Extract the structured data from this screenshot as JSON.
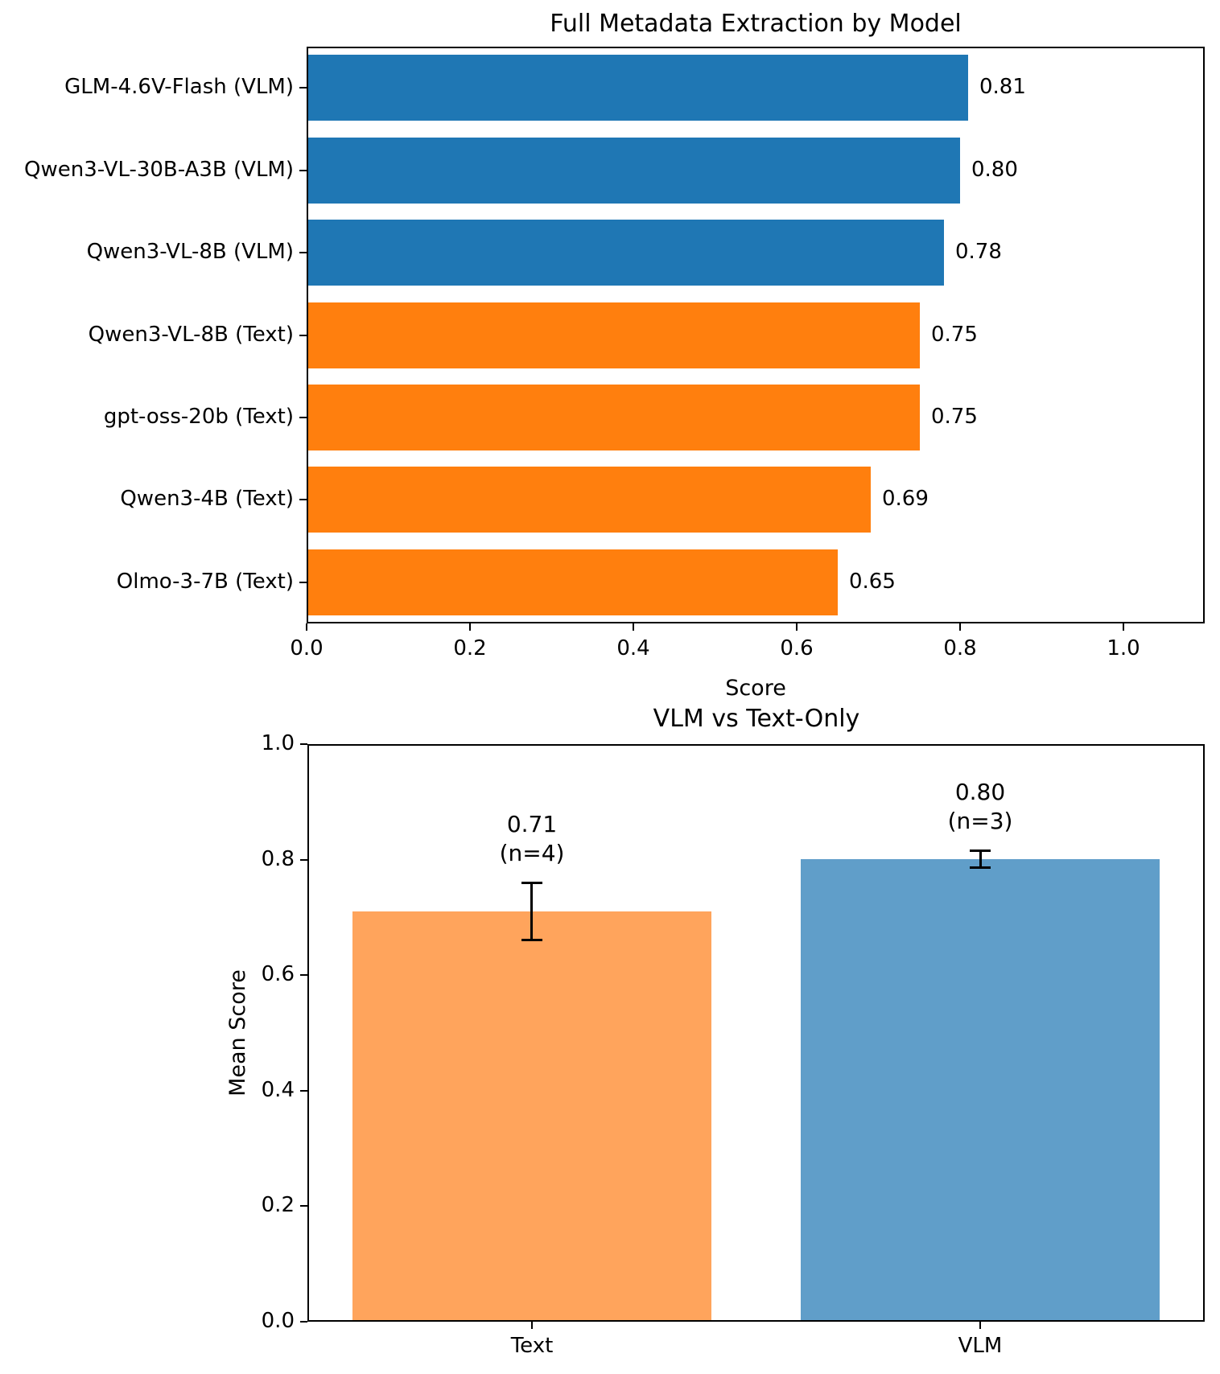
{
  "figure": {
    "background": "#ffffff",
    "text_color": "#000000"
  },
  "chart_data": [
    {
      "type": "bar",
      "orientation": "horizontal",
      "title": "Full Metadata Extraction by Model",
      "xlabel": "Score",
      "ylabel": "",
      "categories": [
        "GLM-4.6V-Flash (VLM)",
        "Qwen3-VL-30B-A3B (VLM)",
        "Qwen3-VL-8B (VLM)",
        "Qwen3-VL-8B (Text)",
        "gpt-oss-20b (Text)",
        "Qwen3-4B (Text)",
        "Olmo-3-7B (Text)"
      ],
      "values": [
        0.81,
        0.8,
        0.78,
        0.75,
        0.75,
        0.69,
        0.65
      ],
      "value_labels": [
        "0.81",
        "0.80",
        "0.78",
        "0.75",
        "0.75",
        "0.69",
        "0.65"
      ],
      "bar_colors": [
        "#1f77b4",
        "#1f77b4",
        "#1f77b4",
        "#ff7f0e",
        "#ff7f0e",
        "#ff7f0e",
        "#ff7f0e"
      ],
      "color_legend": {
        "vlm": "#1f77b4",
        "text": "#ff7f0e"
      },
      "xlim": [
        0.0,
        1.1
      ],
      "xticks": {
        "values": [
          0.0,
          0.2,
          0.4,
          0.6,
          0.8,
          1.0
        ],
        "labels": [
          "0.0",
          "0.2",
          "0.4",
          "0.6",
          "0.8",
          "1.0"
        ]
      },
      "grid": false
    },
    {
      "type": "bar",
      "orientation": "vertical",
      "title": "VLM vs Text-Only",
      "xlabel": "",
      "ylabel": "Mean Score",
      "categories": [
        "Text",
        "VLM"
      ],
      "values": [
        0.71,
        0.8
      ],
      "errors": [
        0.05,
        0.015
      ],
      "annotations": [
        {
          "line1": "0.71",
          "line2": "(n=4)"
        },
        {
          "line1": "0.80",
          "line2": "(n=3)"
        }
      ],
      "bar_colors": [
        "#FFA45C",
        "#609EC9"
      ],
      "ylim": [
        0.0,
        1.0
      ],
      "yticks": {
        "values": [
          0.0,
          0.2,
          0.4,
          0.6,
          0.8,
          1.0
        ],
        "labels": [
          "0.0",
          "0.2",
          "0.4",
          "0.6",
          "0.8",
          "1.0"
        ]
      },
      "grid": false
    }
  ]
}
